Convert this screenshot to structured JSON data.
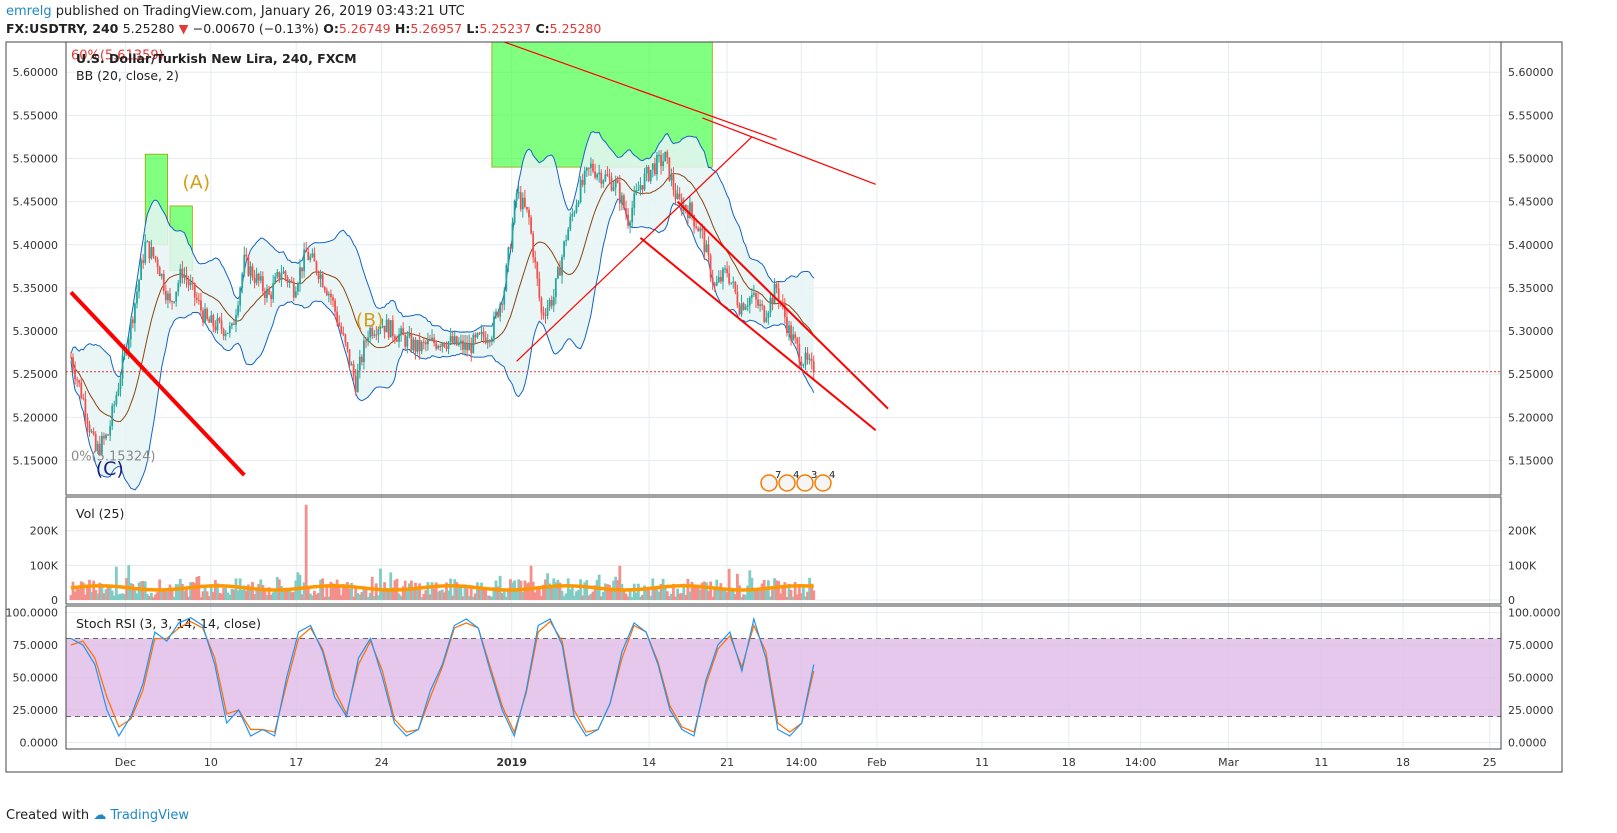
{
  "header": {
    "user": "emrelg",
    "published_text": "published on TradingView.com, January 26, 2019 03:43:21 UTC",
    "symbol": "FX:USDTRY, 240",
    "last": "5.25280",
    "arrow": "▼",
    "change": "−0.00670 (−0.13%)",
    "open_label": "O:",
    "open": "5.26749",
    "high_label": "H:",
    "high": "5.26957",
    "low_label": "L:",
    "low": "5.25237",
    "close_label": "C:",
    "close": "5.25280"
  },
  "footer": {
    "created": "Created with",
    "brand": "TradingView"
  },
  "chart_data": [
    {
      "type": "candlestick",
      "title": "U.S. Dollar/Turkish New Lira, 240, FXCM",
      "indicator_label": "BB (20, close, 2)",
      "ylim": [
        5.11,
        5.635
      ],
      "y_ticks": [
        "5.60000",
        "5.55000",
        "5.50000",
        "5.45000",
        "5.40000",
        "5.35000",
        "5.30000",
        "5.25000",
        "5.20000",
        "5.15000"
      ],
      "y_tick_values": [
        5.6,
        5.55,
        5.5,
        5.45,
        5.4,
        5.35,
        5.3,
        5.25,
        5.2,
        5.15
      ],
      "current_price": 5.2528,
      "close_path": [
        {
          "t": "Nov 27",
          "v": 5.27
        },
        {
          "t": "Nov 28",
          "v": 5.22
        },
        {
          "t": "Nov 29",
          "v": 5.16
        },
        {
          "t": "Nov 30",
          "v": 5.18
        },
        {
          "t": "Dec 1",
          "v": 5.25
        },
        {
          "t": "Dec 2",
          "v": 5.32
        },
        {
          "t": "Dec 3",
          "v": 5.4
        },
        {
          "t": "Dec 4",
          "v": 5.38
        },
        {
          "t": "Dec 5",
          "v": 5.33
        },
        {
          "t": "Dec 6",
          "v": 5.37
        },
        {
          "t": "Dec 7",
          "v": 5.34
        },
        {
          "t": "Dec 8",
          "v": 5.31
        },
        {
          "t": "Dec 10",
          "v": 5.3
        },
        {
          "t": "Dec 11",
          "v": 5.38
        },
        {
          "t": "Dec 12",
          "v": 5.36
        },
        {
          "t": "Dec 13",
          "v": 5.34
        },
        {
          "t": "Dec 14",
          "v": 5.37
        },
        {
          "t": "Dec 15",
          "v": 5.35
        },
        {
          "t": "Dec 16",
          "v": 5.39
        },
        {
          "t": "Dec 17",
          "v": 5.37
        },
        {
          "t": "Dec 18",
          "v": 5.34
        },
        {
          "t": "Dec 19",
          "v": 5.29
        },
        {
          "t": "Dec 20",
          "v": 5.24
        },
        {
          "t": "Dec 21",
          "v": 5.3
        },
        {
          "t": "Dec 22",
          "v": 5.31
        },
        {
          "t": "Dec 23",
          "v": 5.3
        },
        {
          "t": "Dec 25",
          "v": 5.28
        },
        {
          "t": "Dec 27",
          "v": 5.29
        },
        {
          "t": "Dec 29",
          "v": 5.28
        },
        {
          "t": "Dec 31",
          "v": 5.3
        },
        {
          "t": "Jan 1",
          "v": 5.35
        },
        {
          "t": "Jan 2",
          "v": 5.46
        },
        {
          "t": "Jan 3",
          "v": 5.43
        },
        {
          "t": "Jan 4",
          "v": 5.32
        },
        {
          "t": "Jan 5",
          "v": 5.34
        },
        {
          "t": "Jan 6",
          "v": 5.41
        },
        {
          "t": "Jan 7",
          "v": 5.46
        },
        {
          "t": "Jan 8",
          "v": 5.49
        },
        {
          "t": "Jan 9",
          "v": 5.48
        },
        {
          "t": "Jan 10",
          "v": 5.47
        },
        {
          "t": "Jan 11",
          "v": 5.43
        },
        {
          "t": "Jan 12",
          "v": 5.47
        },
        {
          "t": "Jan 13",
          "v": 5.49
        },
        {
          "t": "Jan 14",
          "v": 5.5
        },
        {
          "t": "Jan 15",
          "v": 5.45
        },
        {
          "t": "Jan 16",
          "v": 5.44
        },
        {
          "t": "Jan 17",
          "v": 5.41
        },
        {
          "t": "Jan 18",
          "v": 5.35
        },
        {
          "t": "Jan 19",
          "v": 5.37
        },
        {
          "t": "Jan 20",
          "v": 5.33
        },
        {
          "t": "Jan 21",
          "v": 5.34
        },
        {
          "t": "Jan 22",
          "v": 5.32
        },
        {
          "t": "Jan 23",
          "v": 5.35
        },
        {
          "t": "Jan 24",
          "v": 5.3
        },
        {
          "t": "Jan 25",
          "v": 5.27
        },
        {
          "t": "Jan 26",
          "v": 5.2528
        }
      ],
      "highlight_boxes": [
        {
          "from": "Dec 3",
          "to": "Dec 4",
          "low": 5.4,
          "high": 5.505
        },
        {
          "from": "Dec 5",
          "to": "Dec 6",
          "low": 5.37,
          "high": 5.445
        },
        {
          "from": "Dec 31",
          "to": "Jan 17",
          "low": 5.49,
          "high": 5.635
        }
      ],
      "trend_lines": [
        {
          "from": [
            "Nov 27",
            5.345
          ],
          "to": [
            "Dec 11",
            5.133
          ],
          "color": "#ff0000",
          "width": "thick"
        },
        {
          "from": [
            "Jan 1",
            5.635
          ],
          "to": [
            "Jan 23",
            5.522
          ],
          "color": "#ff0000"
        },
        {
          "from": [
            "Jan 17",
            5.547
          ],
          "to": [
            "Jan 31",
            5.47
          ],
          "color": "#ff0000"
        },
        {
          "from": [
            "Jan 2",
            5.265
          ],
          "to": [
            "Jan 21",
            5.525
          ],
          "color": "#ff0000"
        },
        {
          "from": [
            "Jan 15",
            5.45
          ],
          "to": [
            "Feb 1",
            5.21
          ],
          "color": "#ff0000"
        },
        {
          "from": [
            "Jan 12",
            5.408
          ],
          "to": [
            "Jan 31",
            5.185
          ],
          "color": "#ff0000"
        }
      ],
      "annotations": [
        {
          "text": "(A)",
          "t": "Dec 6",
          "v": 5.465,
          "color": "#d4a017"
        },
        {
          "text": "(B)",
          "t": "Dec 20",
          "v": 5.305,
          "color": "#d4a017"
        },
        {
          "text": "(C)",
          "t": "Nov 29",
          "v": 5.133,
          "color": "#1a237e"
        },
        {
          "text": "60%(5.61359)",
          "t": "Nov 27",
          "v": 5.615,
          "color": "#e53935"
        },
        {
          "text": "0%(5.15324)",
          "t": "Nov 27",
          "v": 5.15,
          "color": "#8a8a8a"
        }
      ],
      "events": [
        "7",
        "4",
        "3",
        "4"
      ]
    },
    {
      "type": "bar",
      "title": "Vol (25)",
      "ylim": [
        0,
        280000
      ],
      "y_ticks": [
        "200K",
        "100K",
        "0"
      ],
      "y_tick_values": [
        200000,
        100000,
        0
      ],
      "ma_level": 35000,
      "spike": {
        "t": "Dec 16",
        "value": 275000
      }
    },
    {
      "type": "line",
      "title": "Stoch RSI (3, 3, 14, 14, close)",
      "ylim": [
        -5,
        105
      ],
      "y_ticks": [
        "100.0000",
        "75.0000",
        "50.0000",
        "25.0000",
        "0.0000"
      ],
      "y_tick_values": [
        100,
        75,
        50,
        25,
        0
      ],
      "band": [
        20,
        80
      ],
      "k_values": [
        80,
        75,
        60,
        25,
        5,
        20,
        45,
        85,
        78,
        92,
        96,
        90,
        60,
        15,
        25,
        5,
        10,
        5,
        50,
        85,
        90,
        70,
        35,
        20,
        65,
        80,
        50,
        15,
        5,
        10,
        40,
        60,
        90,
        95,
        88,
        55,
        25,
        5,
        40,
        90,
        95,
        75,
        20,
        5,
        10,
        30,
        70,
        92,
        85,
        60,
        25,
        10,
        5,
        48,
        75,
        85,
        55,
        95,
        65,
        10,
        5,
        15,
        60
      ],
      "d_values": [
        75,
        78,
        65,
        35,
        12,
        18,
        40,
        80,
        80,
        88,
        93,
        88,
        65,
        22,
        25,
        10,
        10,
        8,
        45,
        80,
        88,
        72,
        40,
        22,
        60,
        78,
        55,
        18,
        8,
        10,
        35,
        58,
        88,
        92,
        88,
        58,
        28,
        8,
        38,
        85,
        93,
        78,
        25,
        8,
        10,
        30,
        65,
        90,
        85,
        62,
        28,
        12,
        8,
        45,
        72,
        82,
        58,
        90,
        70,
        15,
        8,
        15,
        55
      ]
    }
  ],
  "x_axis": {
    "labels": [
      "Dec",
      "10",
      "17",
      "24",
      "2019",
      "14",
      "21",
      "14:00",
      "Feb",
      "11",
      "18",
      "14:00",
      "Mar",
      "11",
      "18",
      "25"
    ],
    "bold": [
      "2019"
    ]
  },
  "colors": {
    "up": "#26a69a",
    "down": "#ef5350",
    "bb_band": "#1565c0",
    "bb_mid": "#8b4513",
    "bb_fill": "#e6f4f4",
    "box": "#33ff33",
    "rsi_k": "#2196f3",
    "rsi_d": "#ff6d00",
    "rsi_band": "#e1bee7",
    "vol_ma": "#ff9800",
    "trend": "#ff0000",
    "price_line": "#e53935"
  }
}
